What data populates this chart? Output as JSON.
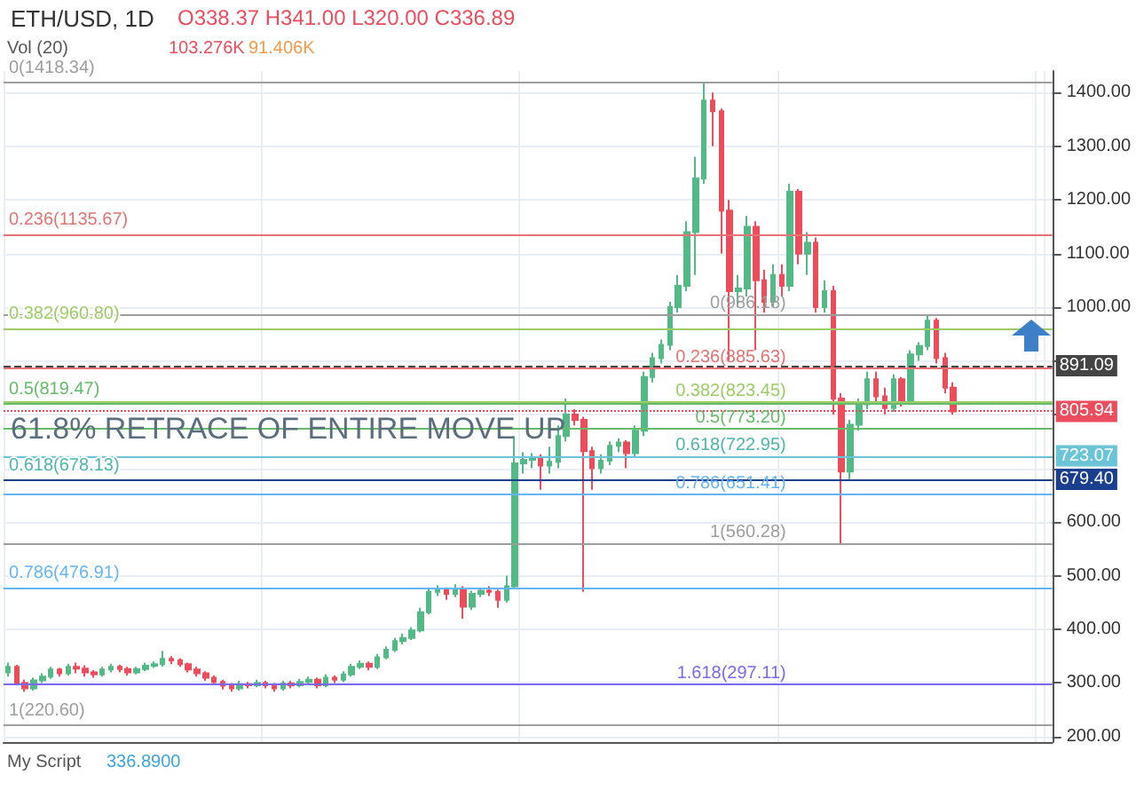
{
  "chart_data": {
    "type": "candlestick",
    "title": "ETH/USD, 1D",
    "subtitle": "O338.37 H341.00 L320.00 C336.89",
    "annotations": [
      "Vol (20)",
      "103.276K",
      "91.406K",
      "61.8% RETRACE OF ENTIRE MOVE UP",
      "My Script",
      "336.8900"
    ],
    "categories": [
      null,
      null,
      null,
      null,
      null,
      null,
      null,
      null,
      null,
      null,
      null,
      null,
      null,
      null,
      null,
      null,
      null,
      null,
      null,
      null,
      null,
      null,
      null,
      null,
      null,
      null,
      null,
      null,
      null,
      null,
      null,
      null,
      null,
      null,
      null,
      null,
      null,
      null,
      null,
      null,
      null,
      null,
      null,
      null,
      null,
      null,
      null,
      null,
      null,
      null,
      null,
      null,
      null,
      null,
      null,
      null,
      null,
      null,
      null,
      null,
      null,
      null,
      null,
      null,
      null,
      null,
      null,
      null,
      null,
      null,
      null,
      null,
      null,
      null,
      null,
      null,
      null,
      null,
      null,
      null,
      null,
      null,
      null,
      null,
      null,
      null,
      null,
      null,
      null,
      null,
      null,
      null,
      null,
      null,
      null,
      null,
      null,
      null,
      null,
      null,
      null,
      null,
      null,
      null,
      null,
      null,
      null,
      null,
      null,
      null,
      null,
      null,
      null,
      null,
      null,
      null,
      null,
      null,
      null,
      null,
      null,
      null
    ],
    "ohlc": [
      [
        320,
        338,
        312,
        330
      ],
      [
        330,
        334,
        296,
        300
      ],
      [
        300,
        306,
        284,
        290
      ],
      [
        290,
        310,
        286,
        305
      ],
      [
        305,
        318,
        300,
        312
      ],
      [
        312,
        330,
        308,
        325
      ],
      [
        325,
        328,
        312,
        318
      ],
      [
        318,
        336,
        314,
        330
      ],
      [
        330,
        338,
        318,
        327
      ],
      [
        327,
        333,
        312,
        320
      ],
      [
        320,
        324,
        310,
        316
      ],
      [
        316,
        330,
        312,
        325
      ],
      [
        325,
        336,
        320,
        330
      ],
      [
        330,
        334,
        320,
        326
      ],
      [
        326,
        330,
        314,
        320
      ],
      [
        320,
        330,
        316,
        326
      ],
      [
        326,
        338,
        322,
        332
      ],
      [
        332,
        340,
        328,
        335
      ],
      [
        335,
        360,
        330,
        345
      ],
      [
        345,
        350,
        335,
        342
      ],
      [
        342,
        346,
        330,
        335
      ],
      [
        335,
        338,
        320,
        325
      ],
      [
        325,
        330,
        312,
        318
      ],
      [
        318,
        322,
        304,
        310
      ],
      [
        310,
        314,
        296,
        302
      ],
      [
        302,
        306,
        288,
        295
      ],
      [
        295,
        300,
        284,
        290
      ],
      [
        290,
        304,
        286,
        298
      ],
      [
        298,
        302,
        290,
        296
      ],
      [
        296,
        306,
        292,
        300
      ],
      [
        300,
        304,
        290,
        296
      ],
      [
        296,
        300,
        284,
        290
      ],
      [
        290,
        304,
        286,
        299
      ],
      [
        299,
        304,
        290,
        296
      ],
      [
        296,
        308,
        292,
        302
      ],
      [
        302,
        312,
        298,
        306
      ],
      [
        306,
        310,
        290,
        296
      ],
      [
        296,
        316,
        292,
        310
      ],
      [
        310,
        314,
        300,
        306
      ],
      [
        306,
        322,
        302,
        316
      ],
      [
        316,
        336,
        312,
        330
      ],
      [
        330,
        342,
        326,
        336
      ],
      [
        336,
        340,
        324,
        330
      ],
      [
        330,
        354,
        326,
        348
      ],
      [
        348,
        368,
        344,
        362
      ],
      [
        362,
        384,
        358,
        378
      ],
      [
        378,
        392,
        372,
        384
      ],
      [
        384,
        404,
        380,
        398
      ],
      [
        398,
        440,
        394,
        432
      ],
      [
        432,
        478,
        428,
        470
      ],
      [
        470,
        482,
        462,
        474
      ],
      [
        474,
        478,
        455,
        466
      ],
      [
        466,
        484,
        460,
        476
      ],
      [
        476,
        480,
        420,
        442
      ],
      [
        442,
        472,
        436,
        466
      ],
      [
        466,
        478,
        460,
        472
      ],
      [
        472,
        480,
        462,
        470
      ],
      [
        470,
        474,
        440,
        455
      ],
      [
        455,
        500,
        450,
        480
      ],
      [
        480,
        760,
        476,
        709
      ],
      [
        709,
        730,
        690,
        716
      ],
      [
        716,
        728,
        700,
        720
      ],
      [
        720,
        726,
        660,
        705
      ],
      [
        705,
        740,
        690,
        712
      ],
      [
        712,
        780,
        700,
        760
      ],
      [
        760,
        830,
        750,
        800
      ],
      [
        800,
        810,
        780,
        790
      ],
      [
        790,
        796,
        470,
        732
      ],
      [
        732,
        740,
        660,
        700
      ],
      [
        700,
        726,
        690,
        714
      ],
      [
        714,
        750,
        706,
        742
      ],
      [
        742,
        756,
        730,
        748
      ],
      [
        748,
        752,
        700,
        728
      ],
      [
        728,
        780,
        720,
        770
      ],
      [
        770,
        880,
        760,
        870
      ],
      [
        870,
        915,
        860,
        905
      ],
      [
        905,
        940,
        895,
        930
      ],
      [
        930,
        1010,
        920,
        1000
      ],
      [
        1000,
        1060,
        990,
        1040
      ],
      [
        1040,
        1160,
        1030,
        1140
      ],
      [
        1140,
        1280,
        1060,
        1240
      ],
      [
        1240,
        1418,
        1230,
        1385
      ],
      [
        1385,
        1400,
        1300,
        1365
      ],
      [
        1365,
        1370,
        1100,
        1180
      ],
      [
        1180,
        1200,
        900,
        1030
      ],
      [
        1030,
        1060,
        1000,
        1035
      ],
      [
        1035,
        1170,
        1020,
        1150
      ],
      [
        1150,
        1160,
        920,
        1050
      ],
      [
        1050,
        1070,
        990,
        1010
      ],
      [
        1010,
        1080,
        1000,
        1060
      ],
      [
        1060,
        1080,
        1020,
        1040
      ],
      [
        1040,
        1230,
        1030,
        1215
      ],
      [
        1215,
        1220,
        1080,
        1100
      ],
      [
        1100,
        1140,
        1060,
        1120
      ],
      [
        1120,
        1130,
        990,
        1000
      ],
      [
        1000,
        1050,
        990,
        1030
      ],
      [
        1030,
        1040,
        800,
        830
      ],
      [
        830,
        840,
        560,
        694
      ],
      [
        694,
        790,
        680,
        781
      ],
      [
        781,
        830,
        770,
        819
      ],
      [
        819,
        880,
        810,
        866
      ],
      [
        866,
        880,
        820,
        834
      ],
      [
        834,
        850,
        800,
        812
      ],
      [
        812,
        875,
        805,
        866
      ],
      [
        866,
        870,
        815,
        825
      ],
      [
        825,
        920,
        818,
        912
      ],
      [
        912,
        935,
        900,
        928
      ],
      [
        928,
        985,
        920,
        975
      ],
      [
        975,
        980,
        895,
        905
      ],
      [
        905,
        915,
        840,
        850
      ],
      [
        850,
        860,
        800,
        806
      ],
      null,
      null,
      null,
      null,
      null,
      null,
      null,
      null,
      null,
      null,
      null
    ],
    "ylim": [
      190,
      1440
    ],
    "yticks": [
      {
        "value": 200,
        "label": "200.00"
      },
      {
        "value": 300,
        "label": "300.00"
      },
      {
        "value": 400,
        "label": "400.00"
      },
      {
        "value": 500,
        "label": "500.00"
      },
      {
        "value": 600,
        "label": "600.00"
      },
      {
        "value": 700,
        "label": null
      },
      {
        "value": 800,
        "label": null
      },
      {
        "value": 900,
        "label": null
      },
      {
        "value": 1000,
        "label": "1000.00"
      },
      {
        "value": 1100,
        "label": "1100.00"
      },
      {
        "value": 1200,
        "label": "1200.00"
      },
      {
        "value": 1300,
        "label": "1300.00"
      },
      {
        "value": 1400,
        "label": "1400.00"
      }
    ],
    "ref_lines": [
      {
        "axis": "y",
        "value": 1418.34,
        "label": "0(1418.34)",
        "color": "#9e9e9e"
      },
      {
        "axis": "y",
        "value": 1135.67,
        "label": "0.236(1135.67)",
        "color": "#e57373"
      },
      {
        "axis": "y",
        "value": 960.8,
        "label": "0.382(960.80)",
        "color": "#9ccc65"
      },
      {
        "axis": "y",
        "value": 819.47,
        "label": "0.5(819.47)",
        "color": "#66bb6a"
      },
      {
        "axis": "y",
        "value": 678.13,
        "label": "0.618(678.13)",
        "color": "#4db6ac"
      },
      {
        "axis": "y",
        "value": 476.91,
        "label": "0.786(476.91)",
        "color": "#64b5f6"
      },
      {
        "axis": "y",
        "value": 220.6,
        "label": "1(220.60)",
        "color": "#9e9e9e"
      },
      {
        "axis": "y",
        "value": 986.18,
        "label": "0(986.18)",
        "color": "#9e9e9e"
      },
      {
        "axis": "y",
        "value": 885.63,
        "label": "0.236(885.63)",
        "color": "#e57373"
      },
      {
        "axis": "y",
        "value": 823.45,
        "label": "0.382(823.45)",
        "color": "#9ccc65"
      },
      {
        "axis": "y",
        "value": 773.2,
        "label": "0.5(773.20)",
        "color": "#66bb6a"
      },
      {
        "axis": "y",
        "value": 722.95,
        "label": "0.618(722.95)",
        "color": "#4db6ac"
      },
      {
        "axis": "y",
        "value": 651.41,
        "label": "0.786(651.41)",
        "color": "#64b5f6"
      },
      {
        "axis": "y",
        "value": 560.28,
        "label": "1(560.28)",
        "color": "#9e9e9e"
      },
      {
        "axis": "y",
        "value": 297.11,
        "label": "1.618(297.11)",
        "color": "#7b68ee"
      },
      {
        "axis": "y",
        "value": 891.09,
        "label": "891.09",
        "color": "#444444",
        "line_style": "dashed"
      },
      {
        "axis": "y",
        "value": 805.94,
        "label": "805.94",
        "color": "#eb4d5c",
        "line_style": "dotted"
      },
      {
        "axis": "y",
        "value": 723.07,
        "label": "723.07",
        "color": "#6cc4d8"
      },
      {
        "axis": "y",
        "value": 679.4,
        "label": "679.40",
        "color": "#1a3f8f"
      }
    ],
    "grid": true
  }
}
